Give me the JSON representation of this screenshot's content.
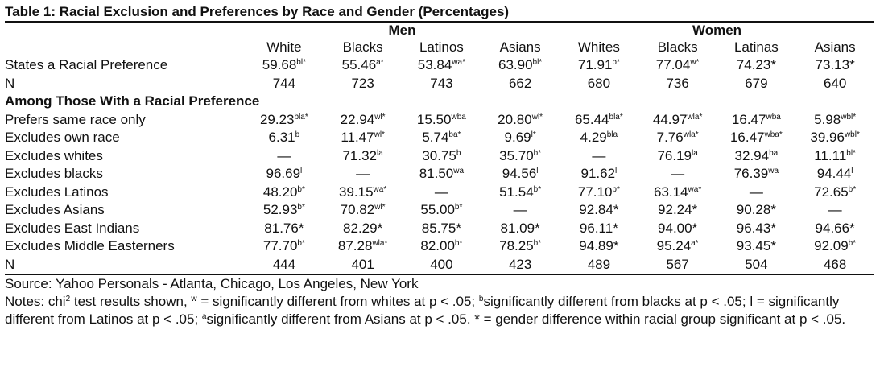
{
  "title": "Table 1: Racial Exclusion and Preferences by Race and Gender (Percentages)",
  "table": {
    "groups": [
      "Men",
      "Women"
    ],
    "columns": [
      "White",
      "Blacks",
      "Latinos",
      "Asians",
      "Whites",
      "Blacks",
      "Latinas",
      "Asians"
    ],
    "rows": [
      {
        "label": "States a Racial Preference",
        "cells": [
          {
            "v": "59.68",
            "sup": "bl*"
          },
          {
            "v": "55.46",
            "sup": "a*"
          },
          {
            "v": "53.84",
            "sup": "wa*"
          },
          {
            "v": "63.90",
            "sup": "bl*"
          },
          {
            "v": "71.91",
            "sup": "b*"
          },
          {
            "v": "77.04",
            "sup": "w*"
          },
          {
            "v": "74.23*"
          },
          {
            "v": "73.13*"
          }
        ]
      },
      {
        "label": "N",
        "cells": [
          {
            "v": "744"
          },
          {
            "v": "723"
          },
          {
            "v": "743"
          },
          {
            "v": "662"
          },
          {
            "v": "680"
          },
          {
            "v": "736"
          },
          {
            "v": "679"
          },
          {
            "v": "640"
          }
        ]
      },
      {
        "section": "Among Those With a Racial Preference"
      },
      {
        "label": "Prefers same race only",
        "cells": [
          {
            "v": "29.23",
            "sup": "bla*"
          },
          {
            "v": "22.94",
            "sup": "wl*"
          },
          {
            "v": "15.50",
            "sup": "wba"
          },
          {
            "v": "20.80",
            "sup": "wl*"
          },
          {
            "v": "65.44",
            "sup": "bla*"
          },
          {
            "v": "44.97",
            "sup": "wla*"
          },
          {
            "v": "16.47",
            "sup": "wba"
          },
          {
            "v": "5.98",
            "sup": "wbl*"
          }
        ]
      },
      {
        "label": "Excludes own race",
        "cells": [
          {
            "v": "6.31",
            "sup": "b"
          },
          {
            "v": "11.47",
            "sup": "wl*"
          },
          {
            "v": "5.74",
            "sup": "ba*"
          },
          {
            "v": "9.69",
            "sup": "l*"
          },
          {
            "v": "4.29",
            "sup": "bla"
          },
          {
            "v": "7.76",
            "sup": "wla*"
          },
          {
            "v": "16.47",
            "sup": "wba*"
          },
          {
            "v": "39.96",
            "sup": "wbl*"
          }
        ]
      },
      {
        "label": "Excludes whites",
        "cells": [
          {
            "v": "—"
          },
          {
            "v": "71.32",
            "sup": "la"
          },
          {
            "v": "30.75",
            "sup": "b"
          },
          {
            "v": "35.70",
            "sup": "b*"
          },
          {
            "v": "—"
          },
          {
            "v": "76.19",
            "sup": "la"
          },
          {
            "v": "32.94",
            "sup": "ba"
          },
          {
            "v": "11.11",
            "sup": "bl*"
          }
        ]
      },
      {
        "label": "Excludes blacks",
        "cells": [
          {
            "v": "96.69",
            "sup": "l"
          },
          {
            "v": "—"
          },
          {
            "v": "81.50",
            "sup": "wa"
          },
          {
            "v": "94.56",
            "sup": "l"
          },
          {
            "v": "91.62",
            "sup": "l"
          },
          {
            "v": "—"
          },
          {
            "v": "76.39",
            "sup": "wa"
          },
          {
            "v": "94.44",
            "sup": "l"
          }
        ]
      },
      {
        "label": "Excludes Latinos",
        "cells": [
          {
            "v": "48.20",
            "sup": "b*"
          },
          {
            "v": "39.15",
            "sup": "wa*"
          },
          {
            "v": "—"
          },
          {
            "v": "51.54",
            "sup": "b*"
          },
          {
            "v": "77.10",
            "sup": "b*"
          },
          {
            "v": "63.14",
            "sup": "wa*"
          },
          {
            "v": "—"
          },
          {
            "v": "72.65",
            "sup": "b*"
          }
        ]
      },
      {
        "label": "Excludes Asians",
        "cells": [
          {
            "v": "52.93",
            "sup": "b*"
          },
          {
            "v": "70.82",
            "sup": "wl*"
          },
          {
            "v": "55.00",
            "sup": "b*"
          },
          {
            "v": "—"
          },
          {
            "v": "92.84*"
          },
          {
            "v": "92.24*"
          },
          {
            "v": "90.28*"
          },
          {
            "v": "—"
          }
        ]
      },
      {
        "label": "Excludes East Indians",
        "cells": [
          {
            "v": "81.76*"
          },
          {
            "v": "82.29*"
          },
          {
            "v": "85.75*"
          },
          {
            "v": "81.09*"
          },
          {
            "v": "96.11*"
          },
          {
            "v": "94.00*"
          },
          {
            "v": "96.43*"
          },
          {
            "v": "94.66*"
          }
        ]
      },
      {
        "label": "Excludes Middle Easterners",
        "cells": [
          {
            "v": "77.70",
            "sup": "b*"
          },
          {
            "v": "87.28",
            "sup": "wla*"
          },
          {
            "v": "82.00",
            "sup": "b*"
          },
          {
            "v": "78.25",
            "sup": "b*"
          },
          {
            "v": "94.89*"
          },
          {
            "v": "95.24",
            "sup": "a*"
          },
          {
            "v": "93.45*"
          },
          {
            "v": "92.09",
            "sup": "b*"
          }
        ]
      },
      {
        "label": "N",
        "cells": [
          {
            "v": "444"
          },
          {
            "v": "401"
          },
          {
            "v": "400"
          },
          {
            "v": "423"
          },
          {
            "v": "489"
          },
          {
            "v": "567"
          },
          {
            "v": "504"
          },
          {
            "v": "468"
          }
        ]
      }
    ]
  },
  "source": "Source: Yahoo Personals - Atlanta, Chicago, Los Angeles, New York",
  "notes": [
    "Notes: chi",
    "2",
    " test results shown, ",
    "w",
    " = significantly different from whites at p < .05; ",
    "b",
    "significantly different from blacks at p < .05; l = significantly different from Latinos at p < .05; ",
    "a",
    "significantly different from Asians at p < .05. * = gender difference within racial group significant at p < .05."
  ]
}
